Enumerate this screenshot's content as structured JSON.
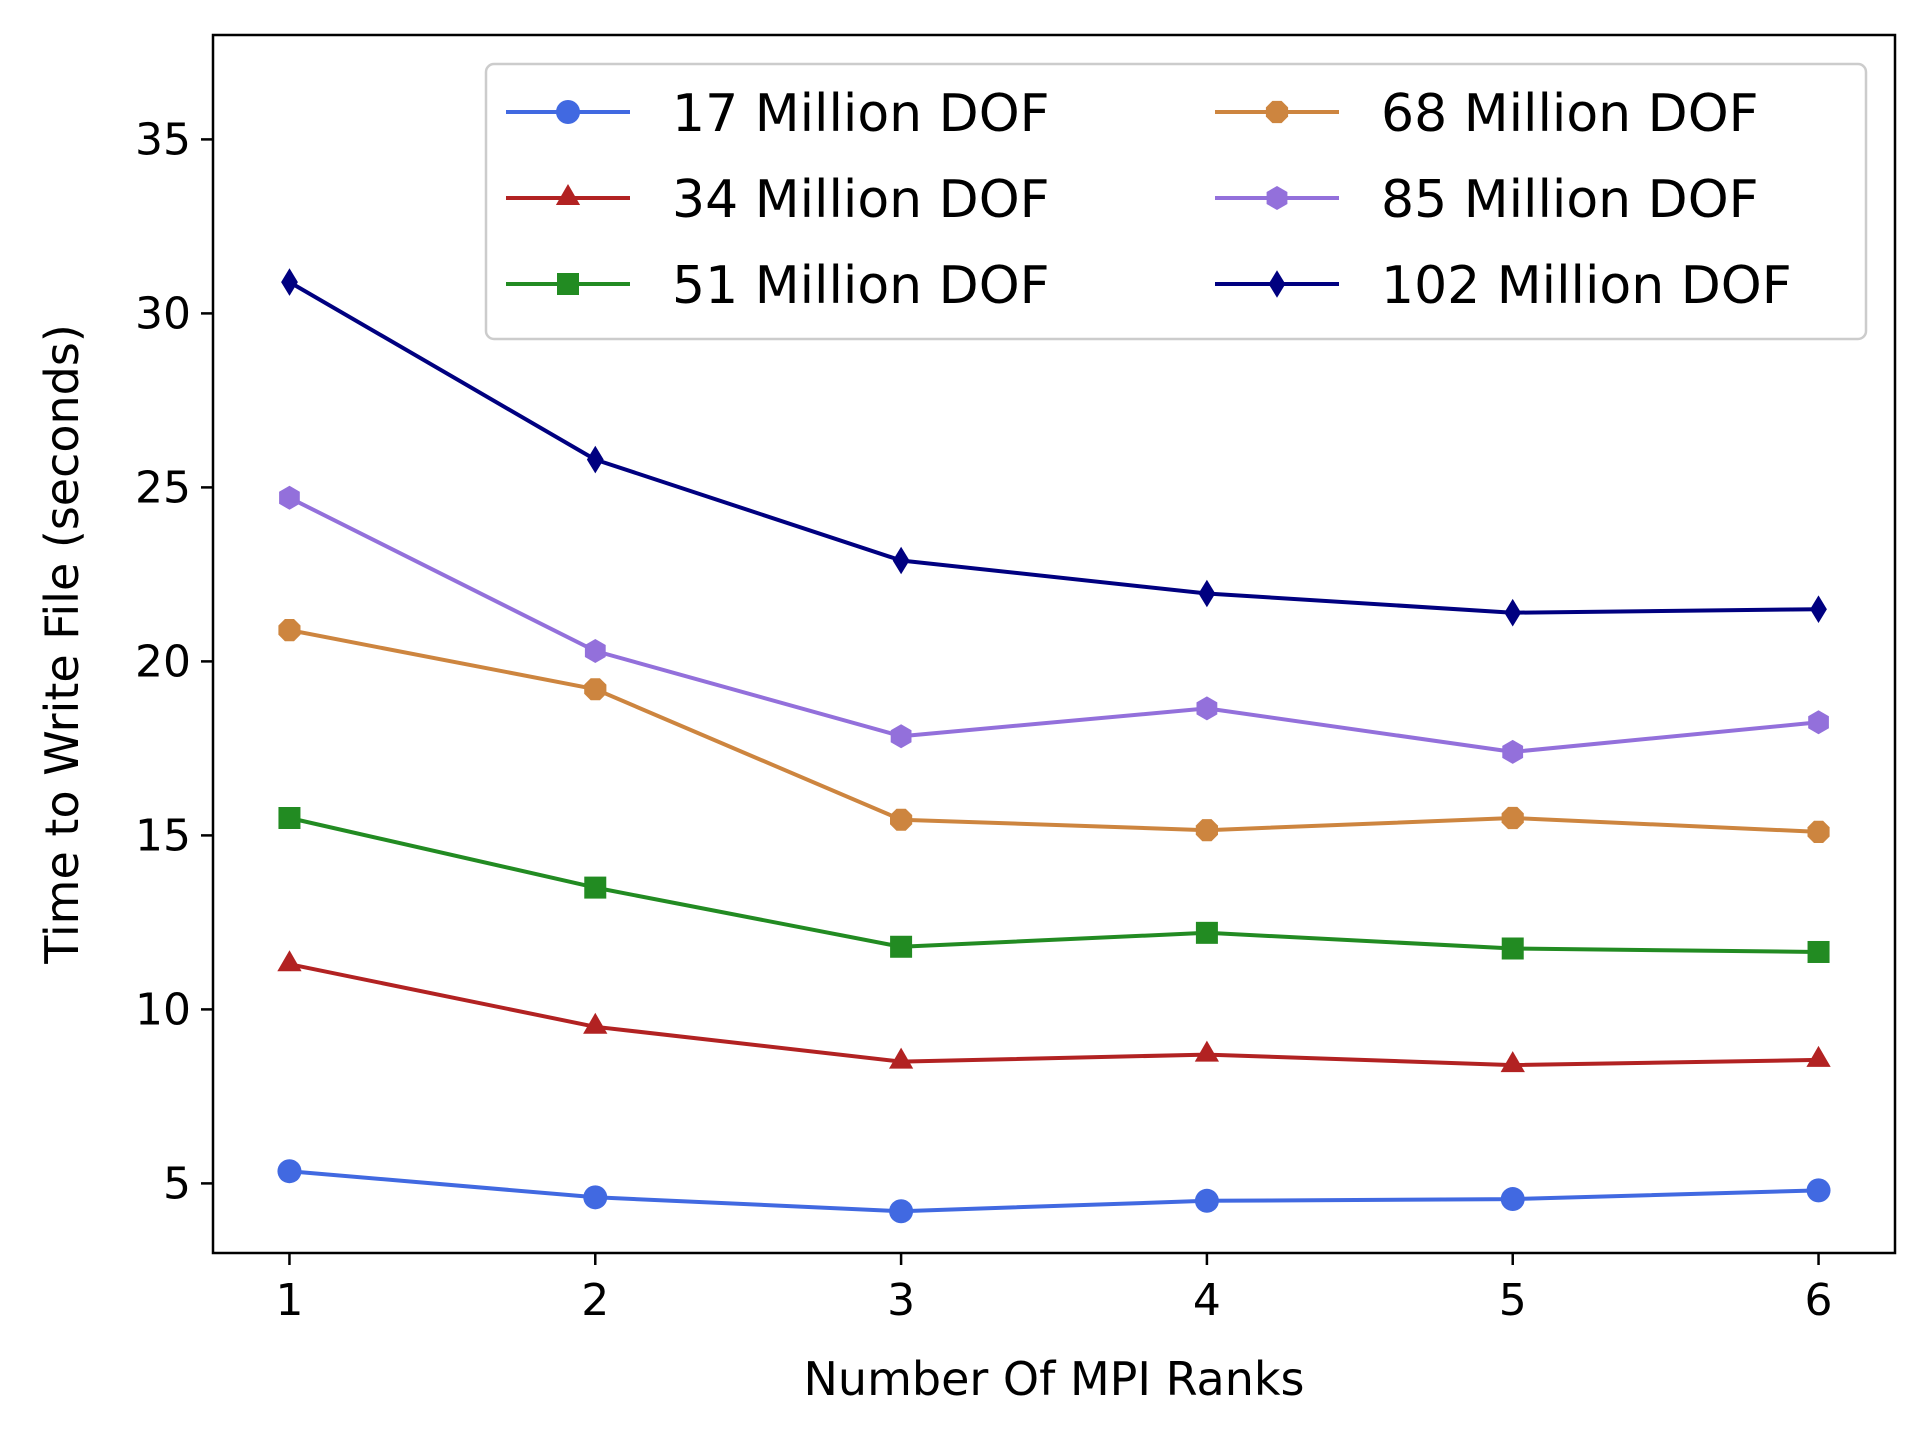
{
  "chart_data": {
    "type": "line",
    "title": "",
    "xlabel": "Number Of MPI Ranks",
    "ylabel": "Time to Write File (seconds)",
    "x": [
      1,
      2,
      3,
      4,
      5,
      6
    ],
    "xticks": [
      "1",
      "2",
      "3",
      "4",
      "5",
      "6"
    ],
    "yticks": [
      "5",
      "10",
      "15",
      "20",
      "25",
      "30",
      "35"
    ],
    "xlim": [
      0.75,
      6.25
    ],
    "ylim": [
      3.0,
      38.0
    ],
    "grid": false,
    "legend_position": "top-right",
    "series": [
      {
        "name": "17 Million DOF",
        "color": "#4169E1",
        "marker": "circle",
        "values": [
          5.35,
          4.6,
          4.2,
          4.5,
          4.55,
          4.8
        ]
      },
      {
        "name": "34 Million DOF",
        "color": "#B22222",
        "marker": "triangle",
        "values": [
          11.3,
          9.5,
          8.5,
          8.7,
          8.4,
          8.55
        ]
      },
      {
        "name": "51 Million DOF",
        "color": "#228B22",
        "marker": "square",
        "values": [
          15.5,
          13.5,
          11.8,
          12.2,
          11.75,
          11.65
        ]
      },
      {
        "name": "68 Million DOF",
        "color": "#CD853F",
        "marker": "octagon",
        "values": [
          20.9,
          19.2,
          15.45,
          15.15,
          15.5,
          15.1
        ]
      },
      {
        "name": "85 Million DOF",
        "color": "#9370DB",
        "marker": "hexagon",
        "values": [
          24.7,
          20.3,
          17.85,
          18.65,
          17.4,
          18.25
        ]
      },
      {
        "name": "102 Million DOF",
        "color": "#000080",
        "marker": "diamond",
        "values": [
          30.9,
          25.8,
          22.9,
          21.95,
          21.4,
          21.5
        ]
      }
    ]
  }
}
